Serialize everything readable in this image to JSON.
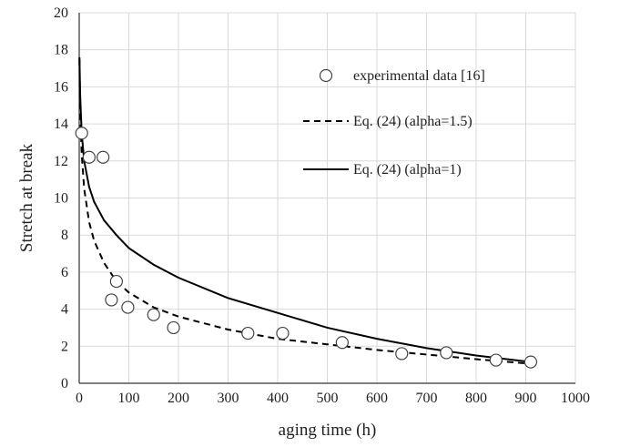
{
  "chart_data": {
    "type": "scatter",
    "xlabel": "aging time (h)",
    "ylabel": "Stretch at break",
    "xlim": [
      0,
      1000
    ],
    "ylim": [
      0,
      20
    ],
    "xticks": [
      0,
      100,
      200,
      300,
      400,
      500,
      600,
      700,
      800,
      900,
      1000
    ],
    "yticks": [
      0,
      2,
      4,
      6,
      8,
      10,
      12,
      14,
      16,
      18,
      20
    ],
    "grid": true,
    "legend_position": "top-right",
    "series": [
      {
        "name": "experimental data [16]",
        "style": "markers",
        "marker": "open-circle",
        "points": [
          [
            5,
            13.5
          ],
          [
            20,
            12.2
          ],
          [
            48,
            12.2
          ],
          [
            65,
            4.5
          ],
          [
            75,
            5.5
          ],
          [
            98,
            4.1
          ],
          [
            150,
            3.7
          ],
          [
            190,
            3.0
          ],
          [
            340,
            2.7
          ],
          [
            410,
            2.7
          ],
          [
            530,
            2.2
          ],
          [
            650,
            1.6
          ],
          [
            740,
            1.65
          ],
          [
            840,
            1.25
          ],
          [
            910,
            1.15
          ]
        ]
      },
      {
        "name": "Eq. (24) (alpha=1.5)",
        "style": "dashed",
        "points": [
          [
            0.5,
            17.5
          ],
          [
            2,
            14.5
          ],
          [
            5,
            12.4
          ],
          [
            10,
            10.5
          ],
          [
            20,
            8.7
          ],
          [
            30,
            7.7
          ],
          [
            50,
            6.5
          ],
          [
            75,
            5.5
          ],
          [
            100,
            4.9
          ],
          [
            150,
            4.1
          ],
          [
            200,
            3.6
          ],
          [
            300,
            2.9
          ],
          [
            400,
            2.4
          ],
          [
            500,
            2.1
          ],
          [
            600,
            1.8
          ],
          [
            700,
            1.55
          ],
          [
            800,
            1.3
          ],
          [
            910,
            1.05
          ]
        ]
      },
      {
        "name": "Eq. (24) (alpha=1)",
        "style": "solid",
        "points": [
          [
            0.5,
            17.6
          ],
          [
            2,
            15.5
          ],
          [
            5,
            13.5
          ],
          [
            10,
            12.0
          ],
          [
            20,
            10.6
          ],
          [
            30,
            9.8
          ],
          [
            50,
            8.8
          ],
          [
            75,
            8.0
          ],
          [
            100,
            7.3
          ],
          [
            150,
            6.4
          ],
          [
            200,
            5.7
          ],
          [
            300,
            4.6
          ],
          [
            400,
            3.8
          ],
          [
            500,
            3.0
          ],
          [
            600,
            2.4
          ],
          [
            700,
            1.9
          ],
          [
            800,
            1.5
          ],
          [
            910,
            1.15
          ]
        ]
      }
    ]
  }
}
